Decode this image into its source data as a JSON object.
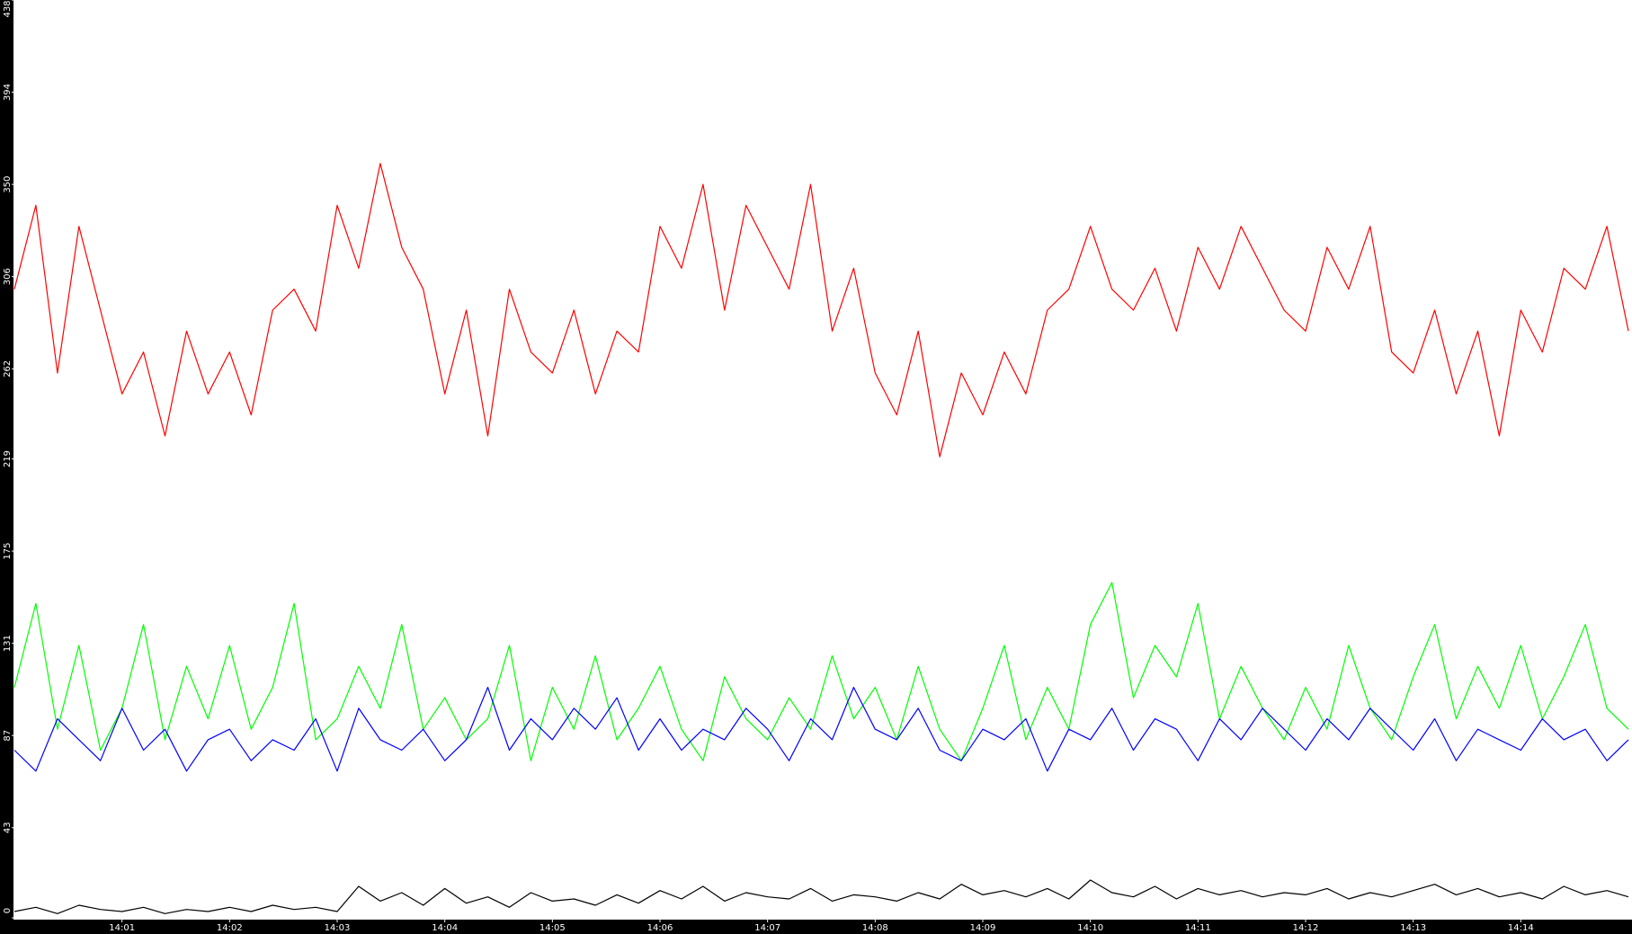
{
  "chart_data": {
    "type": "line",
    "x": [
      0,
      0.2,
      0.4,
      0.6,
      0.8,
      1,
      1.2,
      1.4,
      1.6,
      1.8,
      2,
      2.2,
      2.4,
      2.6,
      2.8,
      3,
      3.2,
      3.4,
      3.6,
      3.8,
      4,
      4.2,
      4.4,
      4.6,
      4.8,
      5,
      5.2,
      5.4,
      5.6,
      5.8,
      6,
      6.2,
      6.4,
      6.6,
      6.8,
      7,
      7.2,
      7.4,
      7.6,
      7.8,
      8,
      8.2,
      8.4,
      8.6,
      8.8,
      9,
      9.2,
      9.4,
      9.6,
      9.8,
      10,
      10.2,
      10.4,
      10.6,
      10.8,
      11,
      11.2,
      11.4,
      11.6,
      11.8,
      12,
      12.2,
      12.4,
      12.6,
      12.8,
      13,
      13.2,
      13.4,
      13.6,
      13.8,
      14,
      14.2,
      14.4,
      14.6,
      14.8,
      15
    ],
    "series": [
      {
        "color": "#ff0000",
        "values": [
          300,
          340,
          260,
          330,
          290,
          250,
          270,
          230,
          280,
          250,
          270,
          240,
          290,
          300,
          280,
          340,
          310,
          360,
          320,
          300,
          250,
          290,
          230,
          300,
          270,
          260,
          290,
          250,
          280,
          270,
          330,
          310,
          350,
          290,
          340,
          320,
          300,
          350,
          280,
          310,
          260,
          240,
          280,
          220,
          260,
          240,
          270,
          250,
          290,
          300,
          330,
          300,
          290,
          310,
          280,
          320,
          300,
          330,
          310,
          290,
          280,
          320,
          300,
          330,
          270,
          260,
          290,
          250,
          280,
          230,
          290,
          270,
          310,
          300,
          330,
          280
        ]
      },
      {
        "color": "#00ff00",
        "values": [
          110,
          150,
          90,
          130,
          80,
          100,
          140,
          85,
          120,
          95,
          130,
          90,
          110,
          150,
          85,
          95,
          120,
          100,
          140,
          90,
          105,
          85,
          95,
          130,
          75,
          110,
          90,
          125,
          85,
          100,
          120,
          90,
          75,
          115,
          95,
          85,
          105,
          90,
          125,
          95,
          110,
          85,
          120,
          90,
          75,
          100,
          130,
          85,
          110,
          90,
          140,
          160,
          105,
          130,
          115,
          150,
          95,
          120,
          100,
          85,
          110,
          90,
          130,
          100,
          85,
          115,
          140,
          95,
          120,
          100,
          130,
          95,
          115,
          140,
          100,
          90
        ]
      },
      {
        "color": "#0000ff",
        "values": [
          80,
          70,
          95,
          85,
          75,
          100,
          80,
          90,
          70,
          85,
          90,
          75,
          85,
          80,
          95,
          70,
          100,
          85,
          80,
          90,
          75,
          85,
          110,
          80,
          95,
          85,
          100,
          90,
          105,
          80,
          95,
          80,
          90,
          85,
          100,
          90,
          75,
          95,
          85,
          110,
          90,
          85,
          100,
          80,
          75,
          90,
          85,
          95,
          70,
          90,
          85,
          100,
          80,
          95,
          90,
          75,
          95,
          85,
          100,
          90,
          80,
          95,
          85,
          100,
          90,
          80,
          95,
          75,
          90,
          85,
          80,
          95,
          85,
          90,
          75,
          85
        ]
      },
      {
        "color": "#000000",
        "values": [
          3,
          5,
          2,
          6,
          4,
          3,
          5,
          2,
          4,
          3,
          5,
          3,
          6,
          4,
          5,
          3,
          15,
          8,
          12,
          6,
          14,
          7,
          10,
          5,
          12,
          8,
          9,
          6,
          11,
          7,
          13,
          9,
          15,
          8,
          12,
          10,
          9,
          14,
          8,
          11,
          10,
          8,
          12,
          9,
          16,
          11,
          13,
          10,
          14,
          9,
          18,
          12,
          10,
          15,
          9,
          14,
          11,
          13,
          10,
          12,
          11,
          14,
          9,
          12,
          10,
          13,
          16,
          11,
          14,
          10,
          12,
          9,
          15,
          11,
          13,
          10
        ]
      }
    ],
    "xlim": [
      0,
      15
    ],
    "xticks": [
      {
        "value": 1,
        "label": "14:01"
      },
      {
        "value": 2,
        "label": "14:02"
      },
      {
        "value": 3,
        "label": "14:03"
      },
      {
        "value": 4,
        "label": "14:04"
      },
      {
        "value": 5,
        "label": "14:05"
      },
      {
        "value": 6,
        "label": "14:06"
      },
      {
        "value": 7,
        "label": "14:07"
      },
      {
        "value": 8,
        "label": "14:08"
      },
      {
        "value": 9,
        "label": "14:09"
      },
      {
        "value": 10,
        "label": "14:10"
      },
      {
        "value": 11,
        "label": "14:11"
      },
      {
        "value": 12,
        "label": "14:12"
      },
      {
        "value": 13,
        "label": "14:13"
      },
      {
        "value": 14,
        "label": "14:14"
      }
    ],
    "ylim": [
      0,
      438
    ],
    "yticks": [
      0,
      43,
      87,
      131,
      175,
      219,
      262,
      306,
      350,
      394,
      438
    ],
    "grid": false
  }
}
